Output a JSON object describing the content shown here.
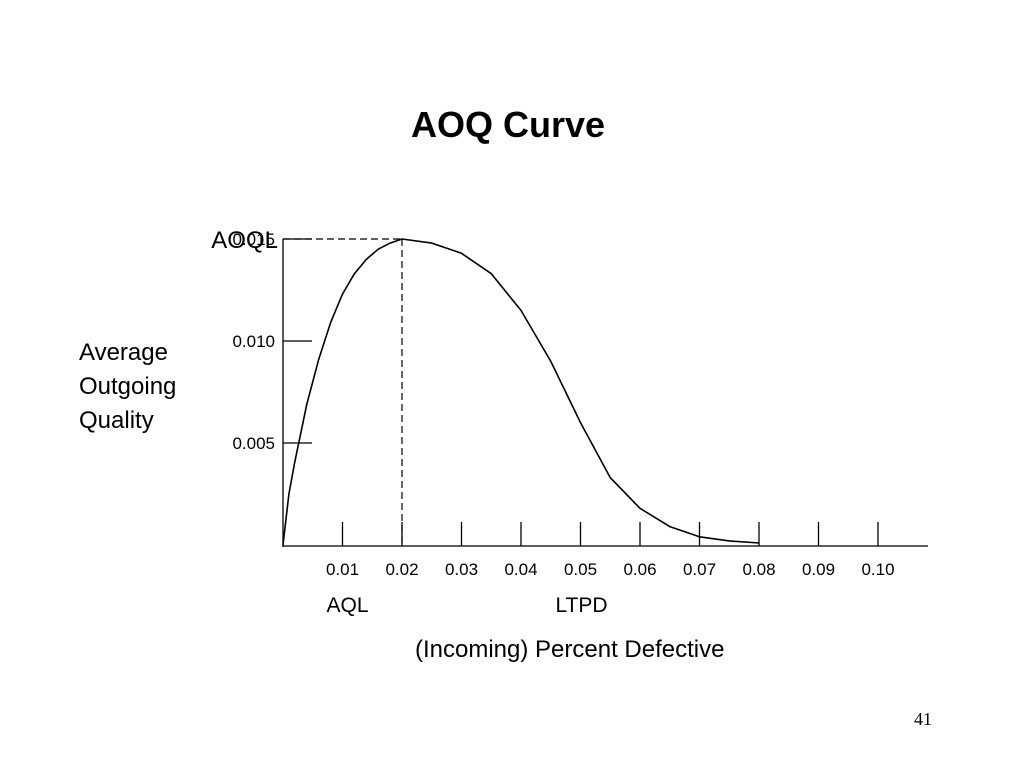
{
  "slide": {
    "title": "AOQ Curve",
    "page_number": "41"
  },
  "chart_data": {
    "type": "line",
    "title": "AOQ Curve",
    "xlabel": "(Incoming) Percent Defective",
    "ylabel_lines": [
      "Average",
      "Outgoing",
      "Quality"
    ],
    "xlim": [
      0,
      0.1
    ],
    "ylim": [
      0,
      0.015
    ],
    "x_ticks": [
      {
        "value": 0.01,
        "label": "0.01"
      },
      {
        "value": 0.02,
        "label": "0.02"
      },
      {
        "value": 0.03,
        "label": "0.03"
      },
      {
        "value": 0.04,
        "label": "0.04"
      },
      {
        "value": 0.05,
        "label": "0.05"
      },
      {
        "value": 0.06,
        "label": "0.06"
      },
      {
        "value": 0.07,
        "label": "0.07"
      },
      {
        "value": 0.08,
        "label": "0.08"
      },
      {
        "value": 0.09,
        "label": "0.09"
      },
      {
        "value": 0.1,
        "label": "0.10"
      }
    ],
    "y_ticks": [
      {
        "value": 0.005,
        "label": "0.005"
      },
      {
        "value": 0.01,
        "label": "0.010"
      },
      {
        "value": 0.015,
        "label": "0.015"
      }
    ],
    "series": [
      {
        "x": [
          0,
          0.001,
          0.002,
          0.004,
          0.006,
          0.008,
          0.01,
          0.012,
          0.014,
          0.016,
          0.018,
          0.02,
          0.025,
          0.03,
          0.035,
          0.04,
          0.045,
          0.05,
          0.055,
          0.06,
          0.065,
          0.07,
          0.075,
          0.08
        ],
        "y": [
          0,
          0.0025,
          0.0041,
          0.0069,
          0.0091,
          0.0109,
          0.0123,
          0.0133,
          0.014,
          0.0145,
          0.0148,
          0.015,
          0.0148,
          0.0143,
          0.0133,
          0.0115,
          0.009,
          0.006,
          0.0033,
          0.0018,
          0.0009,
          0.0004,
          0.0002,
          0.0001
        ]
      }
    ],
    "annotations": [
      {
        "label": "AOQL",
        "y": 0.015,
        "x": 0.02
      },
      {
        "label": "AQL",
        "x": 0.01
      },
      {
        "label": "LTPD",
        "x": 0.05
      }
    ],
    "grid": false,
    "legend": "none"
  }
}
